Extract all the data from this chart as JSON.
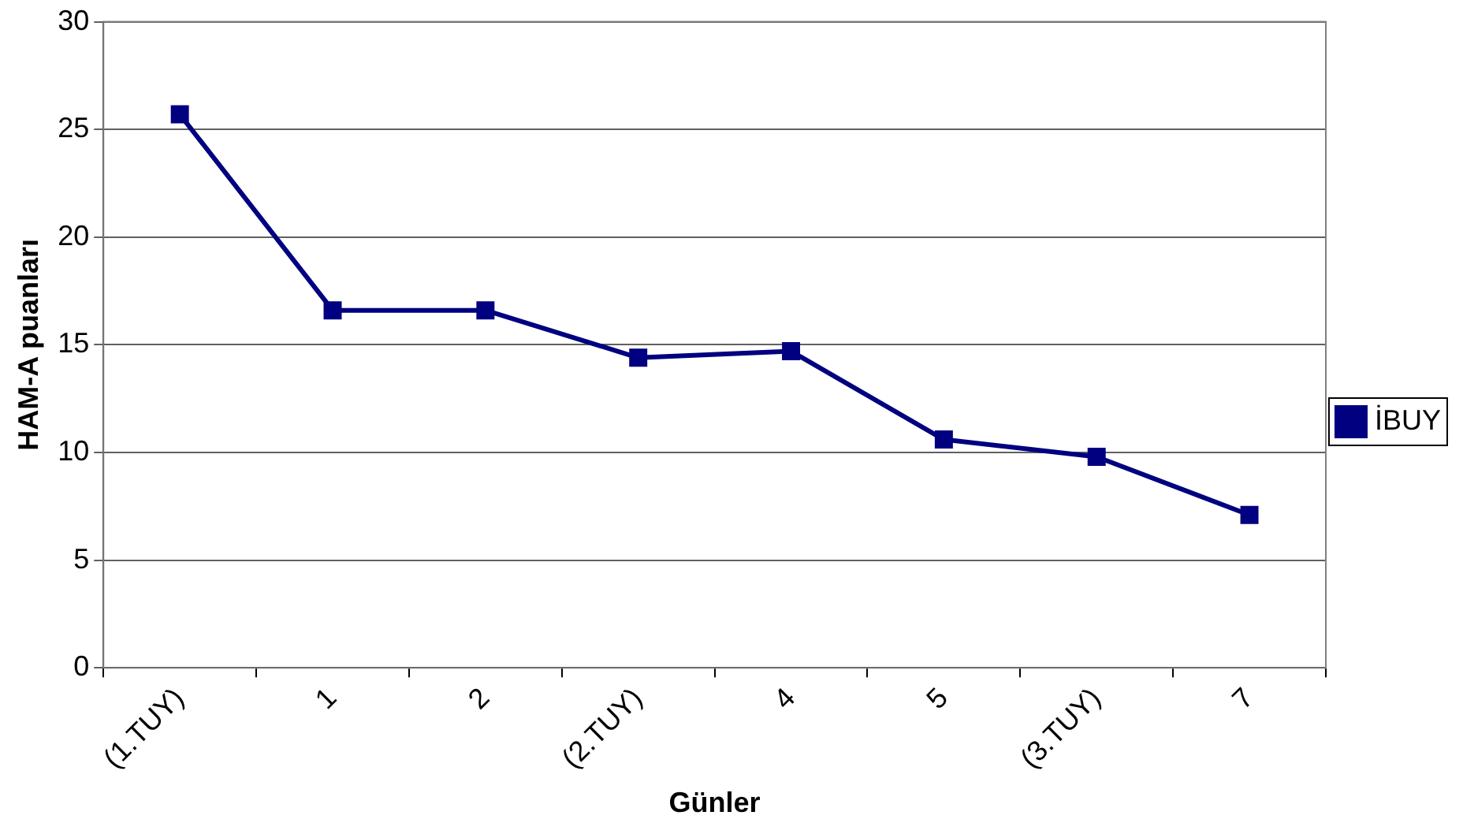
{
  "chart_data": {
    "type": "line",
    "xlabel": "Günler",
    "ylabel": "HAM-A puanları",
    "categories": [
      "(1.TUY)",
      "1",
      "2",
      "(2.TUY)",
      "4",
      "5",
      "(3.TUY)",
      "7"
    ],
    "series": [
      {
        "name": "İBUY",
        "color": "#000080",
        "values": [
          25.7,
          16.6,
          16.6,
          14.4,
          14.7,
          10.6,
          9.8,
          7.1
        ]
      }
    ],
    "ylim": [
      0,
      30
    ],
    "yticks": [
      0,
      5,
      10,
      15,
      20,
      25,
      30
    ],
    "grid": "y",
    "legend": "right",
    "marker": "square",
    "line_style": "solid"
  }
}
